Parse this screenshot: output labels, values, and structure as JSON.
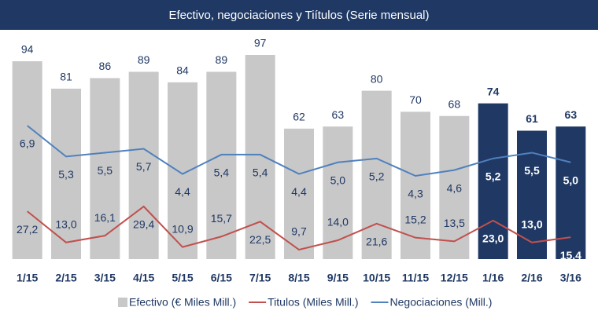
{
  "chart_data": {
    "type": "bar_line",
    "title": "Efectivo, negociaciones y Tiítulos  (Serie mensual)",
    "categories": [
      "1/15",
      "2/15",
      "3/15",
      "4/15",
      "5/15",
      "6/15",
      "7/15",
      "8/15",
      "9/15",
      "10/15",
      "11/15",
      "12/15",
      "1/16",
      "2/16",
      "3/16"
    ],
    "series": [
      {
        "name": "Efectivo (€ Miles Mill.)",
        "kind": "bar",
        "color": "#c8c8c8",
        "colors": [
          "#c8c8c8",
          "#c8c8c8",
          "#c8c8c8",
          "#c8c8c8",
          "#c8c8c8",
          "#c8c8c8",
          "#c8c8c8",
          "#c8c8c8",
          "#c8c8c8",
          "#c8c8c8",
          "#c8c8c8",
          "#c8c8c8",
          "#1f3864",
          "#1f3864",
          "#1f3864"
        ],
        "values": [
          94,
          81,
          86,
          89,
          84,
          89,
          97,
          62,
          63,
          80,
          70,
          68,
          74,
          61,
          63
        ]
      },
      {
        "name": "Titulos (Miles Mill.)",
        "kind": "line",
        "color": "#c0504d",
        "values": [
          27.2,
          13.0,
          16.1,
          29.4,
          10.9,
          15.7,
          22.5,
          9.7,
          14.0,
          21.6,
          15.2,
          13.5,
          23.0,
          13.0,
          15.4
        ],
        "value_labels": [
          "27,2",
          "13,0",
          "16,1",
          "29,4",
          "10,9",
          "15,7",
          "22,5",
          "9,7",
          "14,0",
          "21,6",
          "15,2",
          "13,5",
          "23,0",
          "13,0",
          "15,4"
        ]
      },
      {
        "name": "Negociaciones (Mill.)",
        "kind": "line",
        "color": "#4f81bd",
        "values": [
          6.9,
          5.3,
          5.5,
          5.7,
          4.4,
          5.4,
          5.4,
          4.4,
          5.0,
          5.2,
          4.3,
          4.6,
          5.2,
          5.5,
          5.0
        ],
        "value_labels": [
          "6,9",
          "5,3",
          "5,5",
          "5,7",
          "4,4",
          "5,4",
          "5,4",
          "4,4",
          "5,0",
          "5,2",
          "4,3",
          "4,6",
          "5,2",
          "5,5",
          "5,0"
        ]
      }
    ]
  }
}
